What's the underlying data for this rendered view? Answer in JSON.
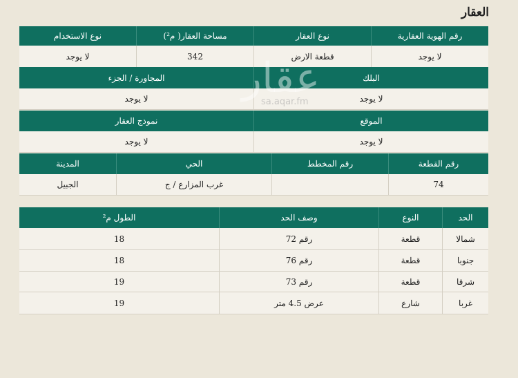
{
  "title": "العقار",
  "watermark": {
    "logo": "عقار",
    "url": "sa.aqar.fm"
  },
  "section1": {
    "headers": [
      "رقم الهوية العقارية",
      "نوع العقار",
      "مساحة العقار( م²)",
      "نوع الاستخدام"
    ],
    "values": [
      "لا يوجد",
      "قطعة الارض",
      "342",
      "لا يوجد"
    ]
  },
  "section2": {
    "headers": [
      "البلك",
      "المجاورة / الجزء"
    ],
    "values": [
      "لا يوجد",
      "لا يوجد"
    ]
  },
  "section3": {
    "headers": [
      "الموقع",
      "نموذج العقار"
    ],
    "values": [
      "لا يوجد",
      "لا يوجد"
    ]
  },
  "section4": {
    "headers": [
      "رقم القطعة",
      "رقم المخطط",
      "الحي",
      "المدينة"
    ],
    "values": [
      "74",
      "",
      "غرب المزارع / ج",
      "الجبيل"
    ]
  },
  "boundaries": {
    "headers": [
      "الحد",
      "النوع",
      "وصف الحد",
      "الطول م²"
    ],
    "rows": [
      [
        "شمالا",
        "قطعة",
        "رقم 72",
        "18"
      ],
      [
        "جنوبا",
        "قطعة",
        "رقم 76",
        "18"
      ],
      [
        "شرقا",
        "قطعة",
        "رقم 73",
        "19"
      ],
      [
        "غربا",
        "شارع",
        "عرض 4.5 متر",
        "19"
      ]
    ]
  },
  "colors": {
    "header": "#0f6f5f",
    "background": "#ece7da"
  }
}
